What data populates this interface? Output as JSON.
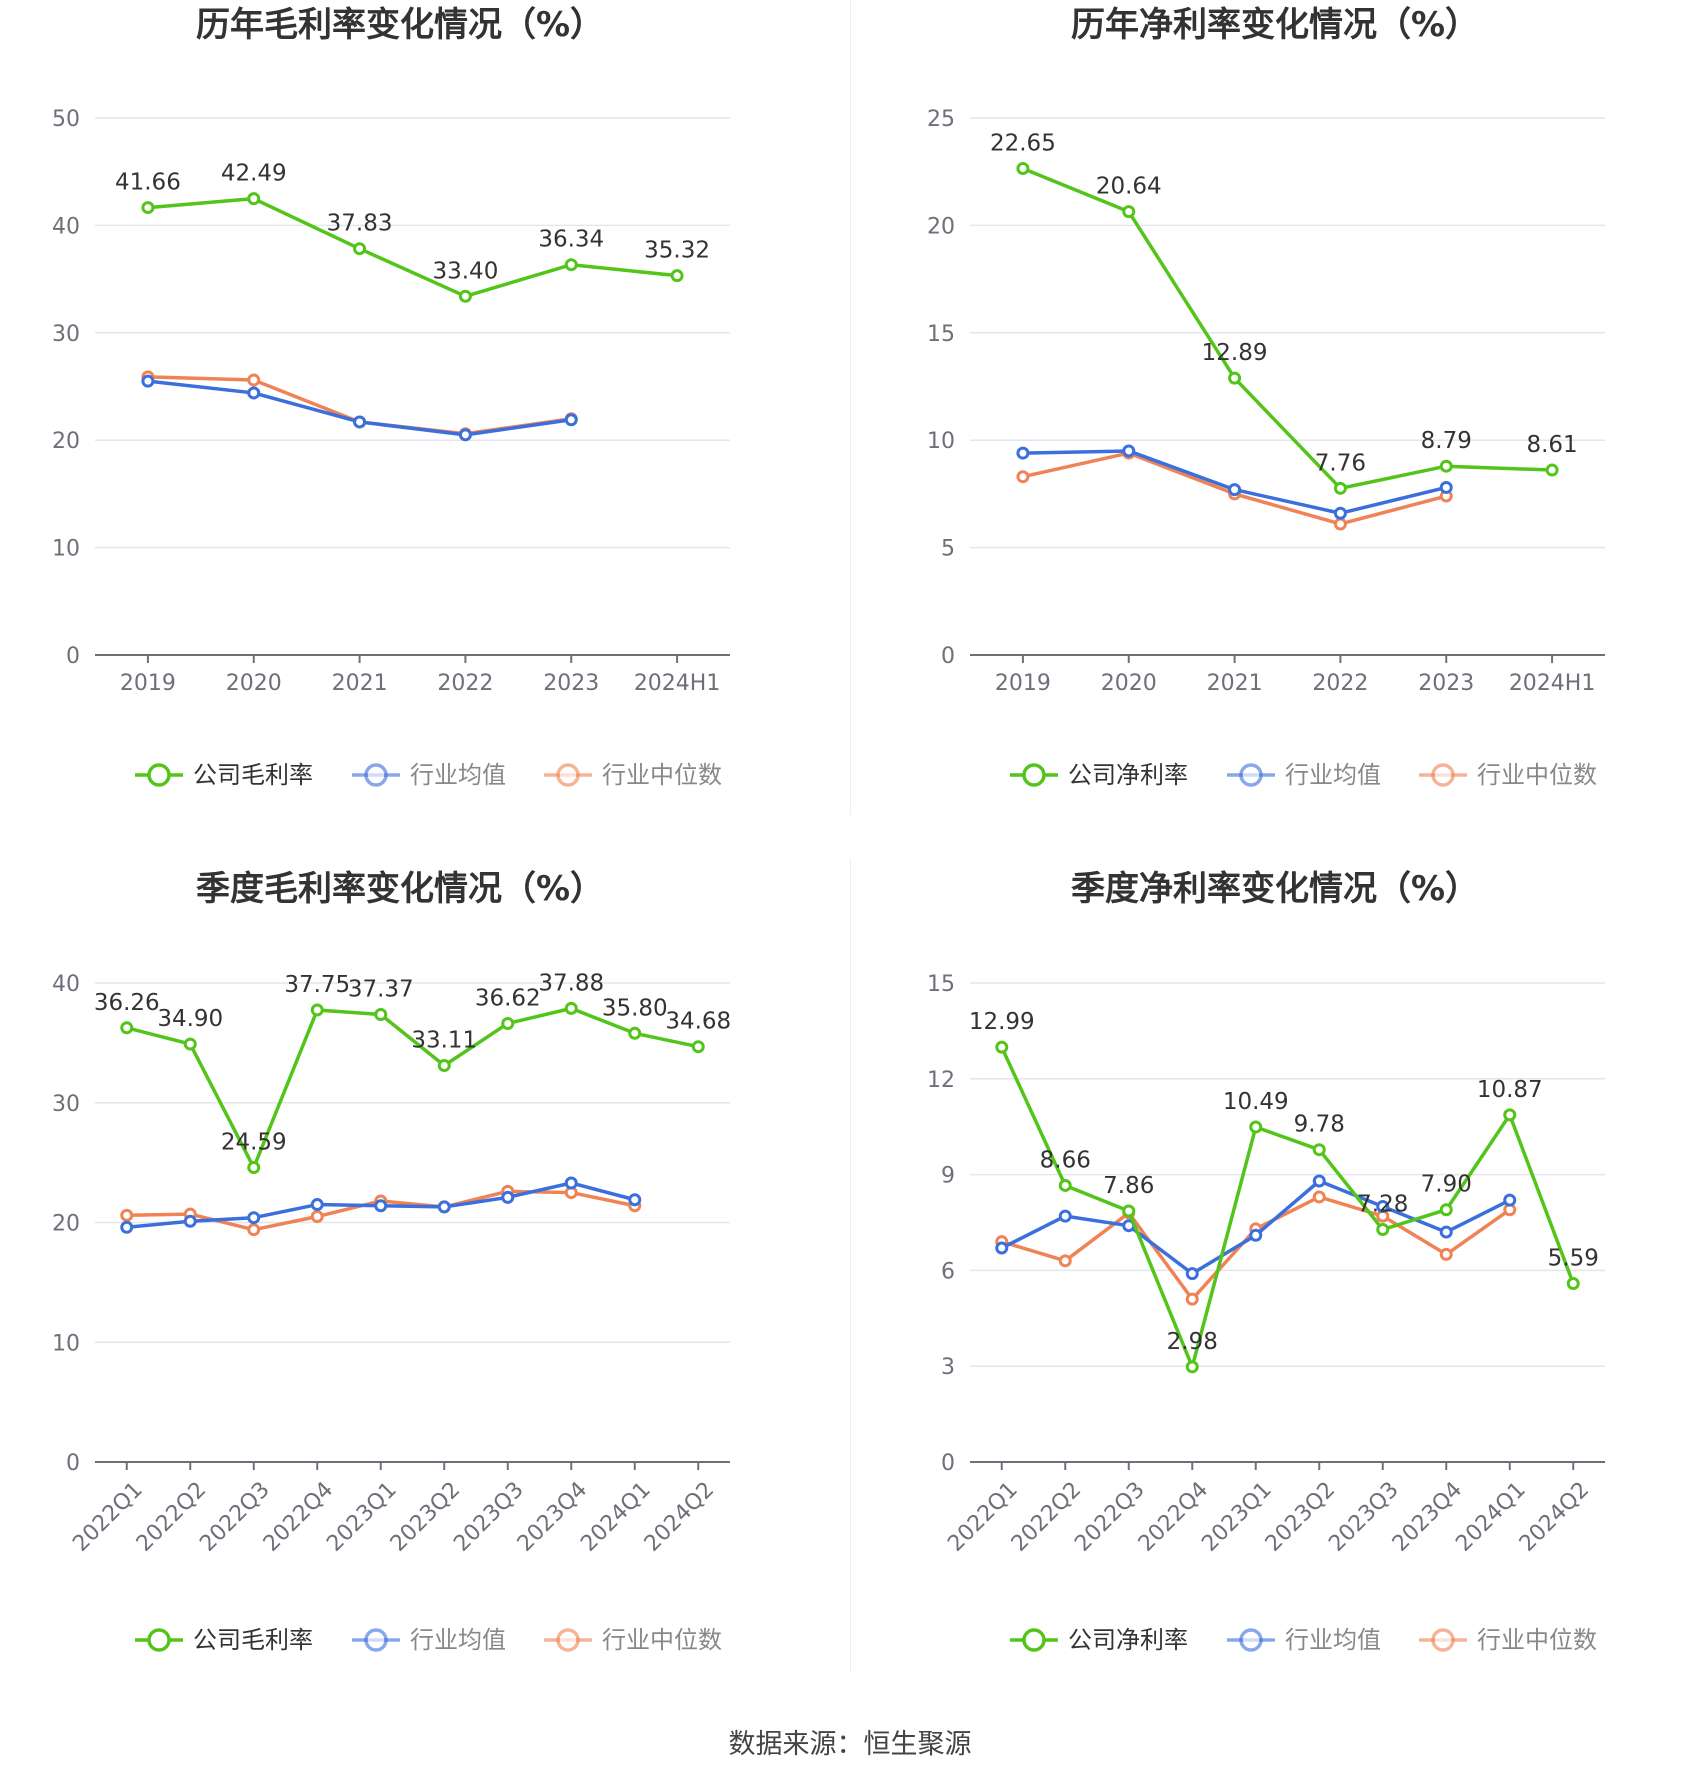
{
  "colors": {
    "company": "#52c41a",
    "avg": "#3a6fdc",
    "median": "#f08355",
    "grid": "#e3e6f0",
    "axis": "#6e7079",
    "text": "#333333",
    "tick": "#6e7079"
  },
  "source": "数据来源：恒生聚源",
  "chart_data": [
    {
      "type": "line",
      "title": "历年毛利率变化情况（%）",
      "categories": [
        "2019",
        "2020",
        "2021",
        "2022",
        "2023",
        "2024H1"
      ],
      "ylim": [
        0,
        50
      ],
      "yticks": [
        0,
        10,
        20,
        30,
        40,
        50
      ],
      "legend_position": "bottom",
      "series": [
        {
          "name": "公司毛利率",
          "color_key": "company",
          "labels": true,
          "values": [
            41.66,
            42.49,
            37.83,
            33.4,
            36.34,
            35.32
          ]
        },
        {
          "name": "行业均值",
          "color_key": "avg",
          "labels": false,
          "values": [
            25.5,
            24.4,
            21.7,
            20.5,
            21.9,
            null
          ]
        },
        {
          "name": "行业中位数",
          "color_key": "median",
          "labels": false,
          "values": [
            25.9,
            25.6,
            21.7,
            20.6,
            22.0,
            null
          ]
        }
      ]
    },
    {
      "type": "line",
      "title": "历年净利率变化情况（%）",
      "categories": [
        "2019",
        "2020",
        "2021",
        "2022",
        "2023",
        "2024H1"
      ],
      "ylim": [
        0,
        25
      ],
      "yticks": [
        0,
        5,
        10,
        15,
        20,
        25
      ],
      "legend_position": "bottom",
      "series": [
        {
          "name": "公司净利率",
          "color_key": "company",
          "labels": true,
          "values": [
            22.65,
            20.64,
            12.89,
            7.76,
            8.79,
            8.61
          ]
        },
        {
          "name": "行业均值",
          "color_key": "avg",
          "labels": false,
          "values": [
            9.4,
            9.5,
            7.7,
            6.6,
            7.8,
            null
          ]
        },
        {
          "name": "行业中位数",
          "color_key": "median",
          "labels": false,
          "values": [
            8.3,
            9.4,
            7.5,
            6.1,
            7.4,
            null
          ]
        }
      ]
    },
    {
      "type": "line",
      "title": "季度毛利率变化情况（%）",
      "categories": [
        "2022Q1",
        "2022Q2",
        "2022Q3",
        "2022Q4",
        "2023Q1",
        "2023Q2",
        "2023Q3",
        "2023Q4",
        "2024Q1",
        "2024Q2"
      ],
      "ylim": [
        0,
        40
      ],
      "yticks": [
        0,
        10,
        20,
        30,
        40
      ],
      "legend_position": "bottom",
      "series": [
        {
          "name": "公司毛利率",
          "color_key": "company",
          "labels": true,
          "values": [
            36.26,
            34.9,
            24.59,
            37.75,
            37.37,
            33.11,
            36.62,
            37.88,
            35.8,
            34.68
          ]
        },
        {
          "name": "行业均值",
          "color_key": "avg",
          "labels": false,
          "values": [
            19.6,
            20.1,
            20.4,
            21.5,
            21.4,
            21.3,
            22.1,
            23.3,
            21.9,
            null
          ]
        },
        {
          "name": "行业中位数",
          "color_key": "median",
          "labels": false,
          "values": [
            20.6,
            20.7,
            19.4,
            20.5,
            21.8,
            21.3,
            22.6,
            22.5,
            21.4,
            null
          ]
        }
      ]
    },
    {
      "type": "line",
      "title": "季度净利率变化情况（%）",
      "categories": [
        "2022Q1",
        "2022Q2",
        "2022Q3",
        "2022Q4",
        "2023Q1",
        "2023Q2",
        "2023Q3",
        "2023Q4",
        "2024Q1",
        "2024Q2"
      ],
      "ylim": [
        0,
        15
      ],
      "yticks": [
        0,
        3,
        6,
        9,
        12,
        15
      ],
      "legend_position": "bottom",
      "series": [
        {
          "name": "公司净利率",
          "color_key": "company",
          "labels": true,
          "values": [
            12.99,
            8.66,
            7.86,
            2.98,
            10.49,
            9.78,
            7.28,
            7.9,
            10.87,
            5.59
          ]
        },
        {
          "name": "行业均值",
          "color_key": "avg",
          "labels": false,
          "values": [
            6.7,
            7.7,
            7.4,
            5.9,
            7.1,
            8.8,
            8.0,
            7.2,
            8.2,
            null
          ]
        },
        {
          "name": "行业中位数",
          "color_key": "median",
          "labels": false,
          "values": [
            6.9,
            6.3,
            7.8,
            5.1,
            7.3,
            8.3,
            7.7,
            6.5,
            7.9,
            null
          ]
        }
      ]
    }
  ]
}
